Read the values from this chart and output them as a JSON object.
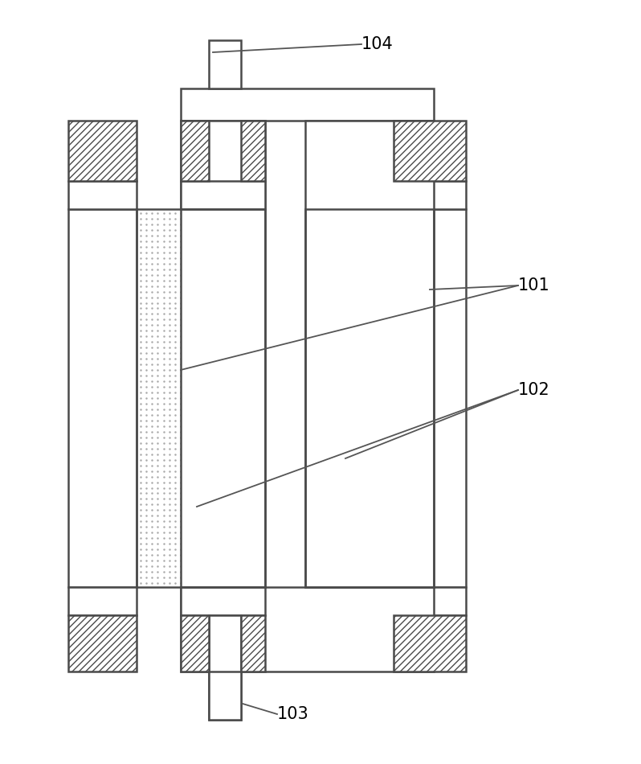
{
  "bg_color": "#ffffff",
  "line_color": "#4a4a4a",
  "label_101": "101",
  "label_102": "102",
  "label_103": "103",
  "label_104": "104",
  "figsize": [
    7.98,
    9.5
  ],
  "dpi": 100
}
